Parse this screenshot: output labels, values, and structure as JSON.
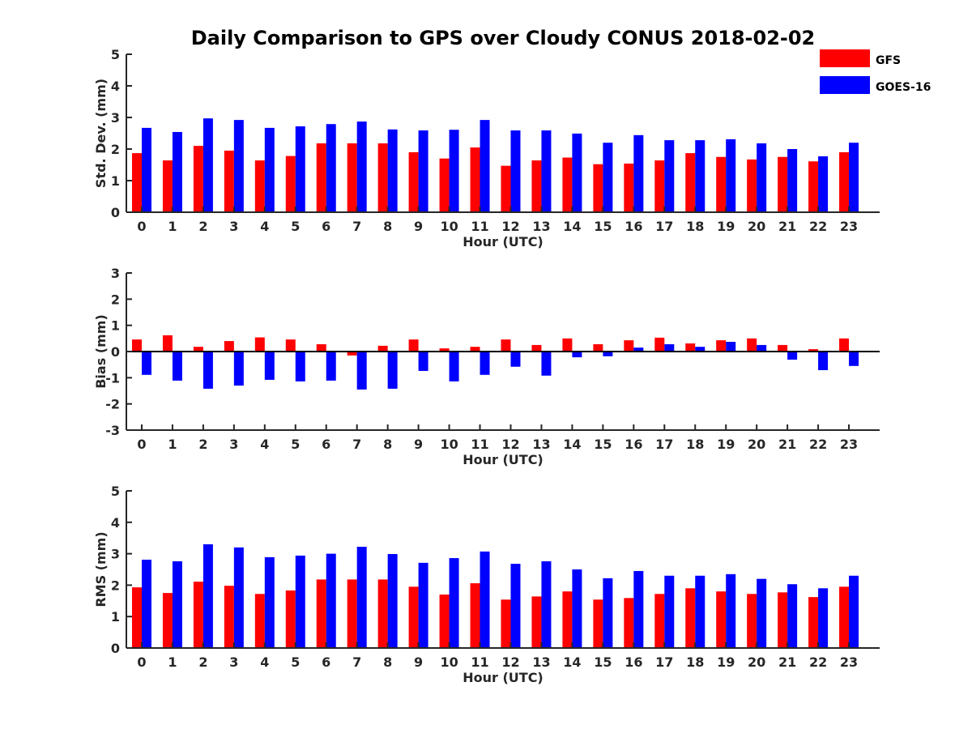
{
  "title": "Daily Comparison to GPS over Cloudy CONUS 2018-02-02",
  "legend": {
    "placement": "top-right",
    "items": [
      {
        "label": "GFS",
        "color": "#ff0000"
      },
      {
        "label": "GOES-16",
        "color": "#0000ff"
      }
    ]
  },
  "chart_data": [
    {
      "type": "bar",
      "title": "Daily Comparison to GPS over Cloudy CONUS 2018-02-02",
      "xlabel": "Hour (UTC)",
      "ylabel": "Std. Dev. (mm)",
      "ylim": [
        0,
        5
      ],
      "yticks": [
        0,
        1,
        2,
        3,
        4,
        5
      ],
      "categories": [
        "0",
        "1",
        "2",
        "3",
        "4",
        "5",
        "6",
        "7",
        "8",
        "9",
        "10",
        "11",
        "12",
        "13",
        "14",
        "15",
        "16",
        "17",
        "18",
        "19",
        "20",
        "21",
        "22",
        "23"
      ],
      "series": [
        {
          "name": "GFS",
          "color": "#ff0000",
          "values": [
            1.87,
            1.64,
            2.1,
            1.95,
            1.64,
            1.78,
            2.18,
            2.18,
            2.18,
            1.9,
            1.7,
            2.05,
            1.47,
            1.64,
            1.73,
            1.52,
            1.54,
            1.64,
            1.87,
            1.75,
            1.67,
            1.75,
            1.61,
            1.9
          ]
        },
        {
          "name": "GOES-16",
          "color": "#0000ff",
          "values": [
            2.67,
            2.54,
            2.97,
            2.92,
            2.67,
            2.72,
            2.79,
            2.87,
            2.62,
            2.59,
            2.61,
            2.92,
            2.59,
            2.59,
            2.49,
            2.2,
            2.44,
            2.28,
            2.28,
            2.31,
            2.18,
            2.0,
            1.77,
            2.2
          ]
        }
      ]
    },
    {
      "type": "bar",
      "title": "",
      "xlabel": "Hour (UTC)",
      "ylabel": "Bias (mm)",
      "ylim": [
        -3,
        3
      ],
      "yticks": [
        -3,
        -2,
        -1,
        0,
        1,
        2,
        3
      ],
      "categories": [
        "0",
        "1",
        "2",
        "3",
        "4",
        "5",
        "6",
        "7",
        "8",
        "9",
        "10",
        "11",
        "12",
        "13",
        "14",
        "15",
        "16",
        "17",
        "18",
        "19",
        "20",
        "21",
        "22",
        "23"
      ],
      "series": [
        {
          "name": "GFS",
          "color": "#ff0000",
          "values": [
            0.46,
            0.62,
            0.18,
            0.4,
            0.54,
            0.46,
            0.28,
            -0.15,
            0.22,
            0.46,
            0.12,
            0.18,
            0.46,
            0.25,
            0.5,
            0.28,
            0.43,
            0.53,
            0.31,
            0.43,
            0.5,
            0.25,
            0.09,
            0.5
          ]
        },
        {
          "name": "GOES-16",
          "color": "#0000ff",
          "values": [
            -0.89,
            -1.11,
            -1.42,
            -1.3,
            -1.08,
            -1.14,
            -1.11,
            -1.45,
            -1.42,
            -0.74,
            -1.14,
            -0.89,
            -0.58,
            -0.92,
            -0.22,
            -0.18,
            0.15,
            0.28,
            0.18,
            0.37,
            0.25,
            -0.31,
            -0.71,
            -0.55
          ]
        }
      ]
    },
    {
      "type": "bar",
      "title": "",
      "xlabel": "Hour (UTC)",
      "ylabel": "RMS (mm)",
      "ylim": [
        0,
        5
      ],
      "yticks": [
        0,
        1,
        2,
        3,
        4,
        5
      ],
      "categories": [
        "0",
        "1",
        "2",
        "3",
        "4",
        "5",
        "6",
        "7",
        "8",
        "9",
        "10",
        "11",
        "12",
        "13",
        "14",
        "15",
        "16",
        "17",
        "18",
        "19",
        "20",
        "21",
        "22",
        "23"
      ],
      "series": [
        {
          "name": "GFS",
          "color": "#ff0000",
          "values": [
            1.93,
            1.75,
            2.11,
            1.98,
            1.72,
            1.83,
            2.18,
            2.18,
            2.18,
            1.95,
            1.7,
            2.06,
            1.54,
            1.64,
            1.8,
            1.54,
            1.59,
            1.72,
            1.9,
            1.8,
            1.72,
            1.77,
            1.62,
            1.95
          ]
        },
        {
          "name": "GOES-16",
          "color": "#0000ff",
          "values": [
            2.81,
            2.76,
            3.3,
            3.2,
            2.89,
            2.94,
            3.0,
            3.22,
            2.99,
            2.71,
            2.86,
            3.07,
            2.68,
            2.76,
            2.5,
            2.22,
            2.45,
            2.3,
            2.3,
            2.35,
            2.2,
            2.03,
            1.9,
            2.3
          ]
        }
      ]
    }
  ]
}
